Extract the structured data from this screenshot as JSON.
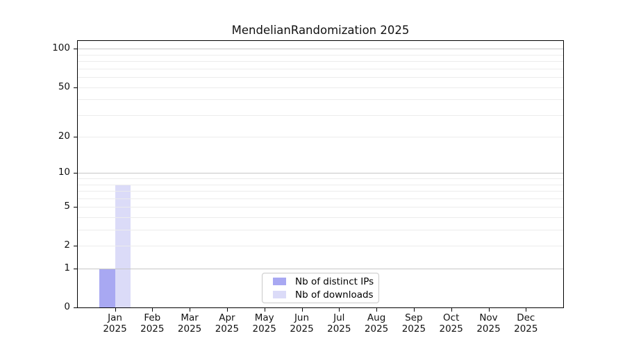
{
  "title": "MendelianRandomization 2025",
  "colors": {
    "bar_distinct_ips": "#a8a8f2",
    "bar_downloads": "#dbdbf8",
    "grid_major": "#c6c6c6",
    "grid_minor": "#ececec",
    "axis_spine": "#000000",
    "legend_border": "#c9c9c9",
    "text": "#111111"
  },
  "legend": {
    "position": "lower center",
    "items": [
      {
        "label": "Nb of distinct IPs",
        "color": "#a8a8f2"
      },
      {
        "label": "Nb of downloads",
        "color": "#dbdbf8"
      }
    ]
  },
  "chart_data": {
    "type": "bar",
    "title": "MendelianRandomization 2025",
    "categories": [
      "Jan",
      "Feb",
      "Mar",
      "Apr",
      "May",
      "Jun",
      "Jul",
      "Aug",
      "Sep",
      "Oct",
      "Nov",
      "Dec"
    ],
    "x_sublabel": "2025",
    "series": [
      {
        "name": "Nb of distinct IPs",
        "color": "#a8a8f2",
        "values": [
          1,
          0,
          0,
          0,
          0,
          0,
          0,
          0,
          0,
          0,
          0,
          0
        ]
      },
      {
        "name": "Nb of downloads",
        "color": "#dbdbf8",
        "values": [
          8,
          0,
          0,
          0,
          0,
          0,
          0,
          0,
          0,
          0,
          0,
          0
        ]
      }
    ],
    "xlabel": "",
    "ylabel": "",
    "y_scale": "log10(1+x)",
    "ylim": [
      0,
      115
    ],
    "y_ticks": [
      0,
      1,
      2,
      5,
      10,
      20,
      50,
      100
    ],
    "y_gridlines_major": [
      1,
      10,
      100
    ],
    "y_gridlines_minor": [
      2,
      3,
      4,
      5,
      6,
      7,
      8,
      9,
      20,
      30,
      40,
      50,
      60,
      70,
      80,
      90
    ],
    "grid": true
  }
}
